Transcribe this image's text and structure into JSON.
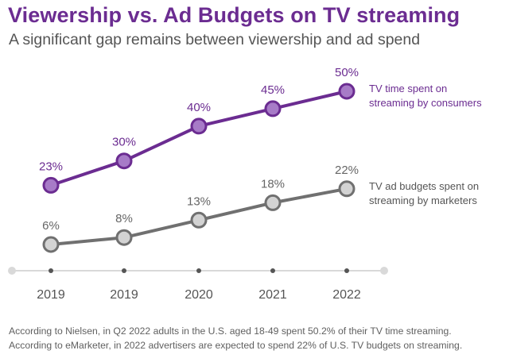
{
  "title": "Viewership vs. Ad Budgets on TV streaming",
  "subtitle": "A significant gap remains between viewership and ad spend",
  "notes": [
    "According to Nielsen, in Q2 2022 adults in the U.S. aged 18-49 spent 50.2% of their TV time streaming.",
    "According to eMarketer, in 2022 advertisers are expected to spend 22% of U.S. TV budgets on streaming."
  ],
  "colors": {
    "consumers_line": "#6b2c91",
    "consumers_marker": "#a77bc7",
    "marketers_line": "#707070",
    "marketers_marker": "#d3d3d3",
    "axis": "#d9d9d9"
  },
  "chart_data": {
    "type": "line",
    "categories": [
      "2019",
      "2019",
      "2020",
      "2021",
      "2022"
    ],
    "ylim": [
      0,
      55
    ],
    "grid": false,
    "series": [
      {
        "name": "TV time spent on streaming by consumers",
        "name_lines": [
          "TV time spent on",
          "streaming by consumers"
        ],
        "values": [
          23,
          30,
          40,
          45,
          50
        ],
        "value_labels": [
          "23%",
          "30%",
          "40%",
          "45%",
          "50%"
        ]
      },
      {
        "name": "TV ad budgets spent on streaming by marketers",
        "name_lines": [
          "TV ad budgets spent on",
          "streaming by marketers"
        ],
        "values": [
          6,
          8,
          13,
          18,
          22
        ],
        "value_labels": [
          "6%",
          "8%",
          "13%",
          "18%",
          "22%"
        ]
      }
    ]
  }
}
